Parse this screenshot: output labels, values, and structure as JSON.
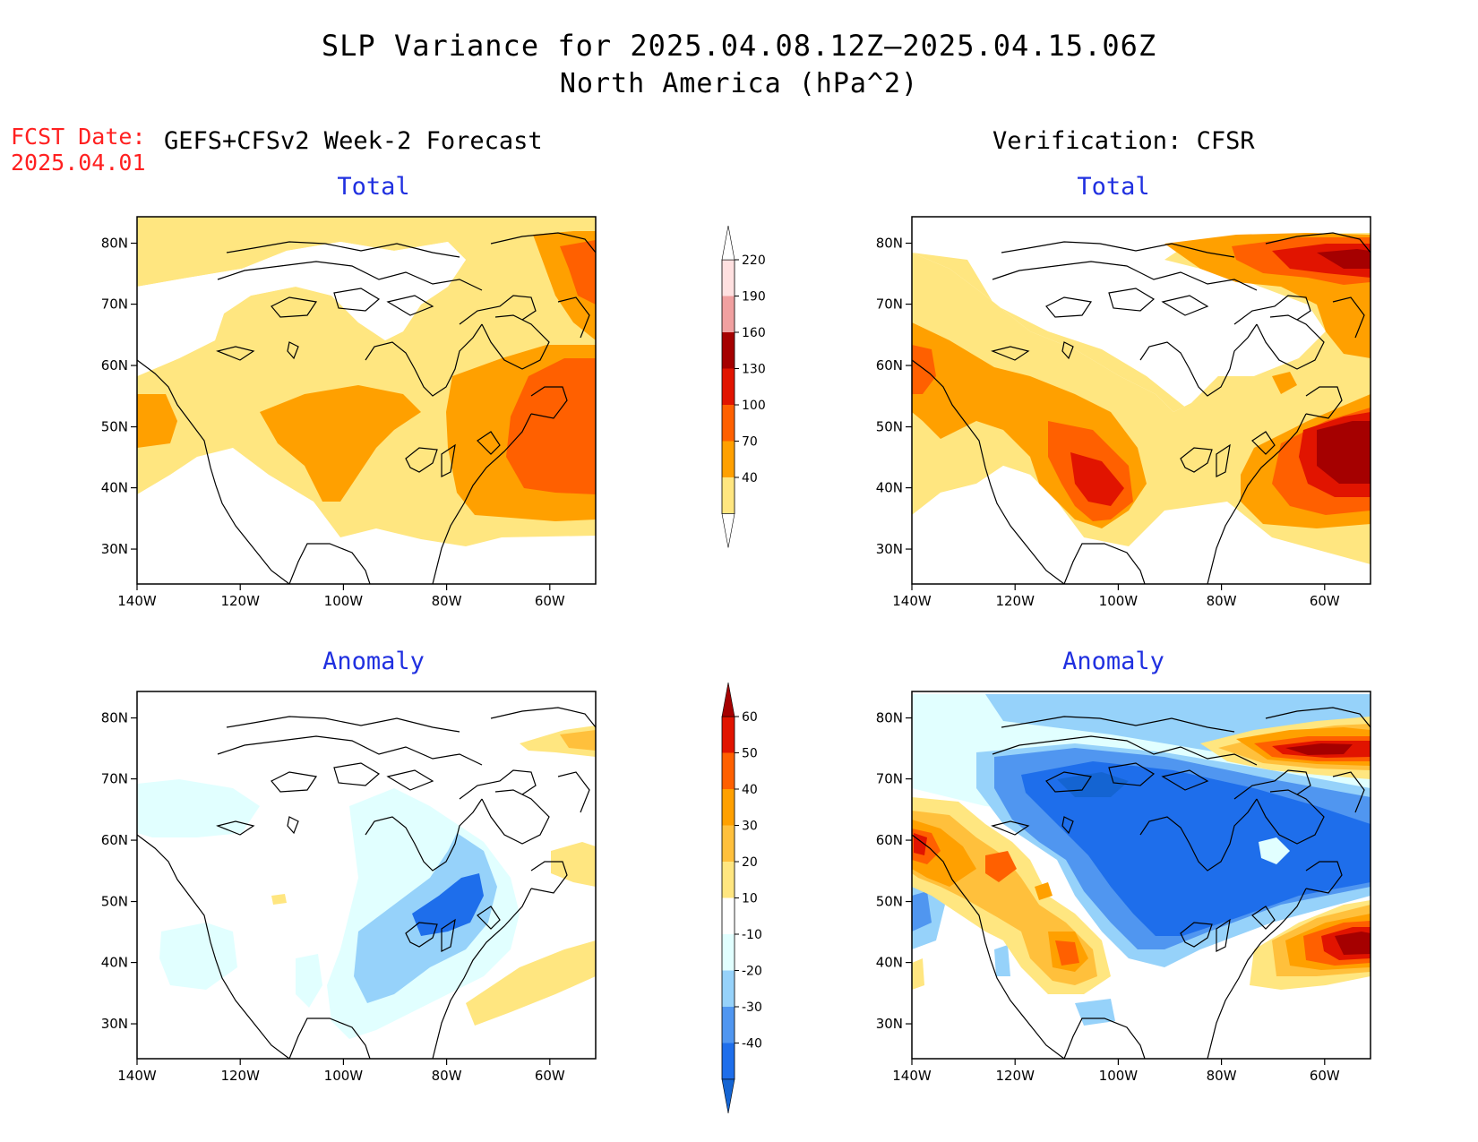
{
  "title": "SLP Variance for 2025.04.08.12Z–2025.04.15.06Z",
  "subtitle": "North America (hPa^2)",
  "fcst_date_label": "FCST Date:",
  "fcst_date_value": "2025.04.01",
  "left_header": "GEFS+CFSv2 Week-2 Forecast",
  "right_header": "Verification: CFSR",
  "panels": [
    {
      "title": "Total",
      "kind": "total"
    },
    {
      "title": "Total",
      "kind": "total"
    },
    {
      "title": "Anomaly",
      "kind": "anomaly"
    },
    {
      "title": "Anomaly",
      "kind": "anomaly"
    }
  ],
  "lat_ticks": [
    "30N",
    "40N",
    "50N",
    "60N",
    "70N",
    "80N"
  ],
  "lon_ticks": [
    "140W",
    "120W",
    "100W",
    "80W",
    "60W"
  ],
  "total_colorbar": {
    "labels": [
      "40",
      "70",
      "100",
      "130",
      "160",
      "190",
      "220"
    ],
    "colors": [
      "#ffe680",
      "#ffa000",
      "#ff6000",
      "#e11400",
      "#a50000",
      "#f0a0a0",
      "#ffe0e0"
    ]
  },
  "anomaly_colorbar": {
    "labels": [
      "-40",
      "-30",
      "-20",
      "-10",
      "10",
      "20",
      "30",
      "40",
      "50",
      "60"
    ],
    "colors": [
      "#1464d2",
      "#1e6eeb",
      "#5096f0",
      "#96d2fa",
      "#e1ffff",
      "#ffffff",
      "#ffe680",
      "#ffc03c",
      "#ffa000",
      "#ff6000",
      "#e11400",
      "#a50000"
    ]
  }
}
